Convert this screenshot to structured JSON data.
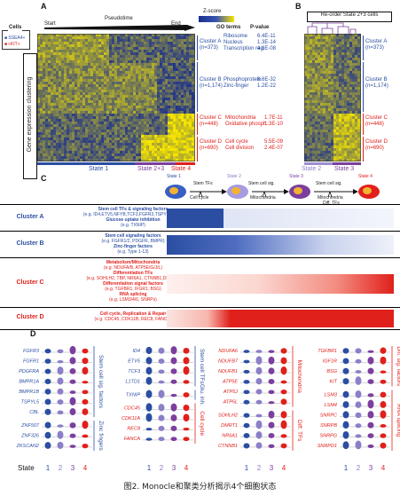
{
  "panels": {
    "a": "A",
    "b": "B",
    "c": "C",
    "d": "D"
  },
  "panelA": {
    "start": "Start",
    "pseudotime": "Pseudotime",
    "end": "End",
    "cells_label": "Cells",
    "cell_legend": [
      "SSEA4+",
      "cKIT+"
    ],
    "y_axis_label": "Gene expression clustering",
    "zscore_label": "Z-score",
    "go_header": "GO terms",
    "pvalue_header": "P-value",
    "states": [
      "State 1",
      "State 2+3",
      "State 4"
    ],
    "clusters": [
      {
        "name": "Cluster A",
        "n": "(n=373)",
        "terms": [
          "Ribosome",
          "Nucleus",
          "Transcription reg."
        ],
        "pvalues": [
          "6.4E-11",
          "1.3E-14",
          "4.8E-08"
        ]
      },
      {
        "name": "Cluster B",
        "n": "(n=1,174)",
        "terms": [
          "Phosphoprotein",
          "Zinc-finger"
        ],
        "pvalues": [
          "8.6E-32",
          "1.2E-22"
        ]
      },
      {
        "name": "Cluster C",
        "n": "(n=448)",
        "terms": [
          "Mitochondria",
          "Oxidative phosph."
        ],
        "pvalues": [
          "1.7E-11",
          "1.3E-10"
        ]
      },
      {
        "name": "Cluster D",
        "n": "(n=690)",
        "terms": [
          "Cell cycle",
          "Cell division"
        ],
        "pvalues": [
          "5.5E-09",
          "2.4E-07"
        ]
      }
    ]
  },
  "panelB": {
    "title": "Re-order State 2+3 cells",
    "clusters": [
      {
        "name": "Cluster A",
        "n": "(n=373)"
      },
      {
        "name": "Cluster B",
        "n": "(n=1,174)"
      },
      {
        "name": "Cluster C",
        "n": "(n=448)"
      },
      {
        "name": "Cluster D",
        "n": "(n=690)"
      }
    ],
    "states": [
      "State 2",
      "State 3"
    ]
  },
  "panelC": {
    "states": [
      "State 1",
      "State 2",
      "State 3",
      "State 4"
    ],
    "transitions": [
      "Stem TFs",
      "Cell cycle",
      "Stem cell sig.",
      "Mitochondria",
      "Stem cell sig.",
      "Mitochondria",
      "Diff. TFs"
    ],
    "rows": [
      {
        "cluster": "Cluster A",
        "lines": [
          {
            "t": "Stem cell TFs & signaling factors",
            "b": true
          },
          {
            "t": "(e.g. ID4,ETV5,NFYB,TCF3,FGFR3,TSPYL5,CBL)",
            "b": false
          },
          {
            "t": "Glucose uptake inhibition",
            "b": true
          },
          {
            "t": "(e.g. TXNIP)",
            "b": false
          }
        ]
      },
      {
        "cluster": "Cluster B",
        "lines": [
          {
            "t": "Stem cell signaling factors",
            "b": true
          },
          {
            "t": "(e.g. FGFR1/2, PDGFR, BMPR)",
            "b": false
          },
          {
            "t": "Zinc-finger factors",
            "b": true
          },
          {
            "t": "(e.g. Type 1-13)",
            "b": false
          }
        ]
      },
      {
        "cluster": "Cluster C",
        "lines": [
          {
            "t": "Metabolism/Mitochondria",
            "b": true
          },
          {
            "t": "(e.g. NDUFA/B, ATP5E/G/J/L)",
            "b": false
          },
          {
            "t": "Differentiation TFs",
            "b": true
          },
          {
            "t": "(e.g. SOHLH2, TBP, NR6A1, CTNNB1,DMRT1)",
            "b": false
          },
          {
            "t": "Differentiation signal factors",
            "b": true
          },
          {
            "t": "(e.g. TGFBR1, IFGR1, BSG)",
            "b": false
          },
          {
            "t": "RNA splicing",
            "b": true
          },
          {
            "t": "(e.g. LSM3/4/6, SNRPs)",
            "b": false
          }
        ]
      },
      {
        "cluster": "Cluster D",
        "lines": [
          {
            "t": "Cell cycle, Replication & Repair",
            "b": true
          },
          {
            "t": "(e.g. CDC45, CDK11B, REC8, FANCA)",
            "b": false
          }
        ]
      }
    ]
  },
  "panelD": {
    "groups": [
      {
        "label": "Stem cell sig. factors",
        "color": "#2b4ea2",
        "genes": [
          "FGFR3",
          "FGFR1",
          "PDGFRA",
          "BMPR1A",
          "BMPR1B",
          "TSPYL5",
          "CBL"
        ]
      },
      {
        "label": "Zinc fingers",
        "color": "#2b4ea2",
        "genes": [
          "ZNF507",
          "ZNF326",
          "ZKSCAN2"
        ]
      },
      {
        "label": "Stem cell TFs",
        "color": "#2b4ea2",
        "genes": [
          "ID4",
          "ETV5",
          "TCF3",
          "L1TD1"
        ]
      },
      {
        "label": "Glu. inh.",
        "color": "#2b4ea2",
        "genes": [
          "TXNIP"
        ]
      },
      {
        "label": "Cell cycle",
        "color": "#e0201b",
        "genes": [
          "CDC45",
          "CDK11A",
          "REC8",
          "FANCA"
        ]
      },
      {
        "label": "Mitochondria",
        "color": "#e0201b",
        "genes": [
          "NDUFA6",
          "NDUFB7",
          "NDUFB1",
          "ATP5E",
          "ATP5J",
          "ATP5L"
        ]
      },
      {
        "label": "Diff. TFs",
        "color": "#e0201b",
        "genes": [
          "SOHLH2",
          "DMRT1",
          "NR6A1",
          "CTNNB1"
        ]
      },
      {
        "label": "Diff. sig. factors",
        "color": "#e0201b",
        "genes": [
          "TGFBR1",
          "IGF1R",
          "BSG",
          "KIT"
        ]
      },
      {
        "label": "RNA splicing",
        "color": "#e0201b",
        "genes": [
          "LSM3",
          "LSM4",
          "SNRPC",
          "SNRPB",
          "SNRPG",
          "SNRPD1"
        ]
      }
    ],
    "state_label": "State",
    "state_ticks": [
      "1",
      "2",
      "3",
      "4"
    ]
  },
  "caption": "图2. Monocle和聚类分析揭示4个细胞状态",
  "colors": {
    "blue": "#2b4ea2",
    "red": "#e0201b",
    "purple": "#7b3f9e",
    "heat_yellow": "#f5e400",
    "heat_blue": "#1a2f8f"
  }
}
